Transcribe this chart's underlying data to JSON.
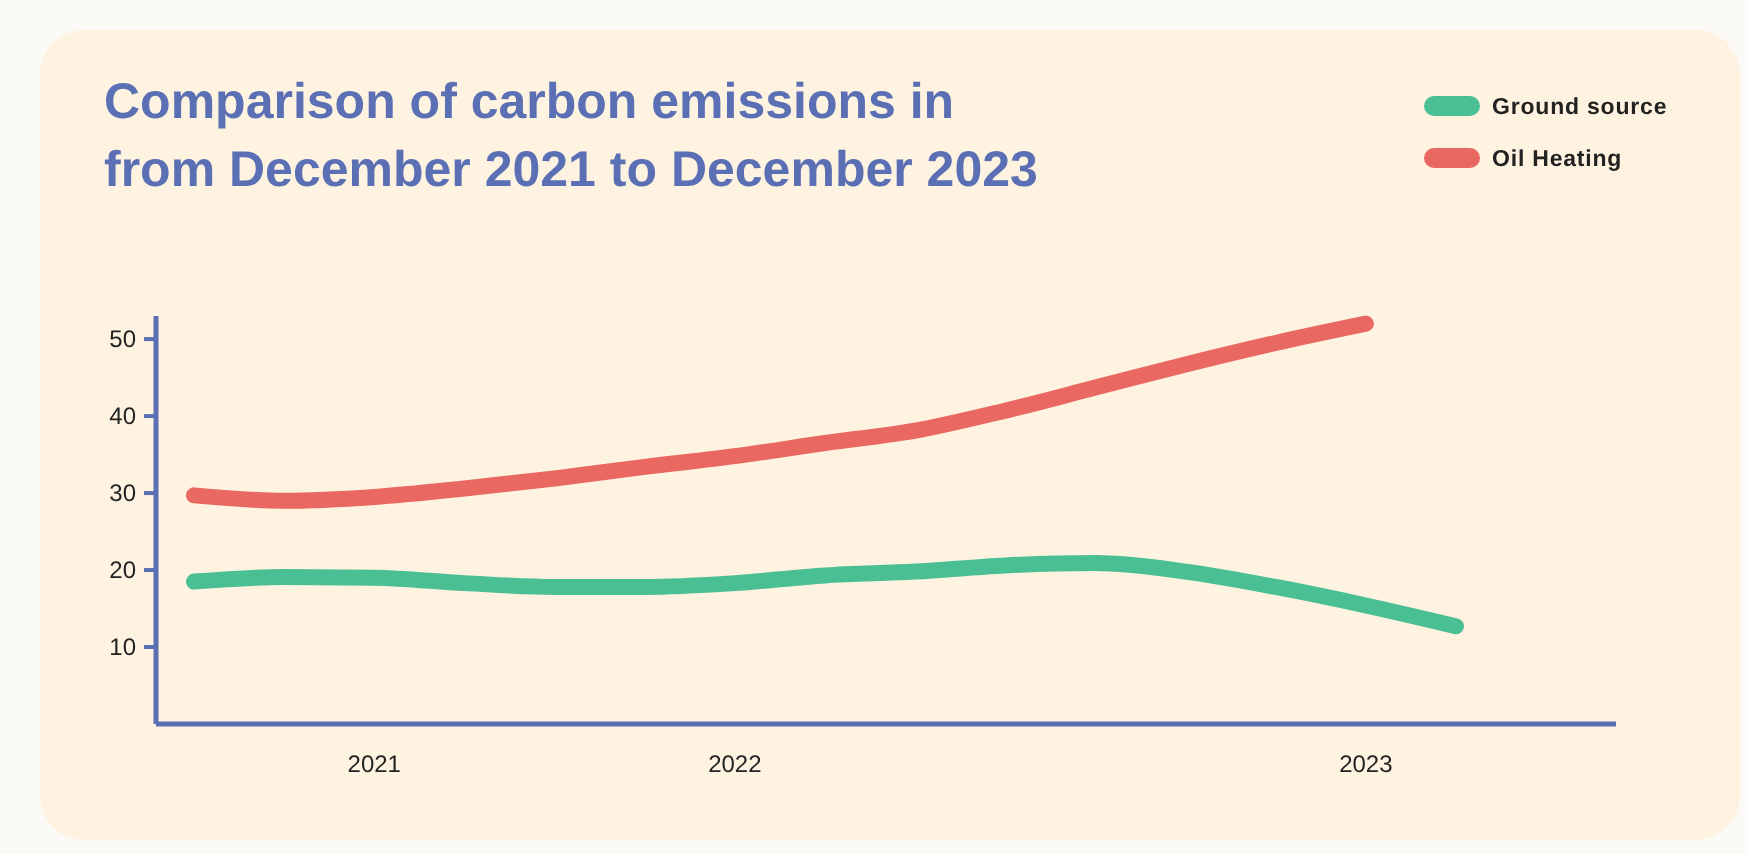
{
  "chart_data": {
    "type": "line",
    "title": "Comparison of carbon emissions in from December 2021 to December 2023",
    "categories": [
      null,
      null,
      "2021",
      null,
      null,
      null,
      "2022",
      null,
      null,
      null,
      null,
      null,
      null,
      "2023",
      null
    ],
    "series": [
      {
        "name": "Ground source",
        "color": "#4bbf94",
        "values": [
          18.5,
          19.1,
          19.0,
          18.3,
          17.8,
          17.8,
          18.3,
          19.3,
          19.8,
          20.6,
          20.9,
          19.8,
          17.8,
          15.4,
          12.7
        ]
      },
      {
        "name": "Oil Heating",
        "color": "#ea6862",
        "values": [
          29.7,
          29.0,
          29.5,
          30.6,
          31.9,
          33.4,
          34.8,
          36.5,
          38.1,
          40.7,
          43.7,
          46.7,
          49.5,
          52.0,
          null
        ]
      }
    ],
    "ylim": [
      0,
      53
    ],
    "yticks": [
      10,
      20,
      30,
      40,
      50
    ],
    "grid": false,
    "legend": "top right",
    "marker": "none",
    "line_style": "solid"
  }
}
